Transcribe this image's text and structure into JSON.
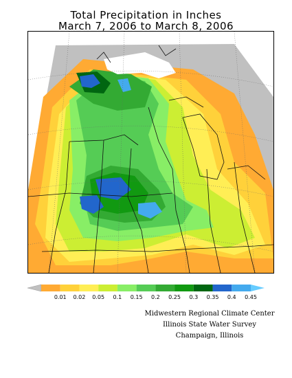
{
  "title": {
    "line1": "Total Precipitation in Inches",
    "line2": "March 7, 2006 to March 8, 2006"
  },
  "legend": {
    "labels": [
      "0.01",
      "0.02",
      "0.05",
      "0.1",
      "0.15",
      "0.2",
      "0.25",
      "0.3",
      "0.35",
      "0.4",
      "0.45"
    ],
    "colors": [
      "#c0c0c0",
      "#ffaa33",
      "#ffd13a",
      "#ffee55",
      "#ccee33",
      "#88ee66",
      "#55cc55",
      "#33aa33",
      "#119911",
      "#006611",
      "#2266cc",
      "#44aaee",
      "#66ccff"
    ]
  },
  "credits": {
    "line1": "Midwestern Regional Climate Center",
    "line2": "Illinois State Water Survey",
    "line3": "Champaign, Illinois"
  }
}
